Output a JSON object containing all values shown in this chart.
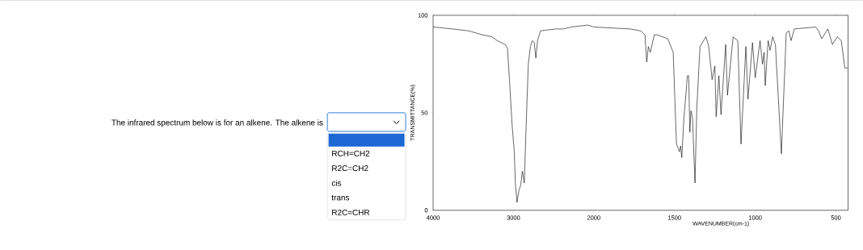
{
  "chart_data": [
    {
      "type": "line",
      "ylabel": "TRANSMITTANCE(%)",
      "color": "#000000",
      "x": [
        4000,
        3758,
        3556,
        3387,
        3269,
        3202,
        3101,
        3074,
        3051,
        3017,
        2990,
        2976,
        2956,
        2933,
        2909,
        2889,
        2865,
        2848,
        2815,
        2788,
        2764,
        2741,
        2721,
        2700,
        2663,
        2478,
        2377,
        2276,
        2074,
        2000
      ],
      "values": [
        94,
        93,
        92,
        90,
        89,
        87,
        85,
        83,
        68,
        44,
        30,
        14,
        4,
        10,
        13,
        20,
        14,
        36,
        75,
        84,
        87,
        86,
        78,
        87,
        92,
        93,
        93,
        94,
        95,
        94
      ],
      "xlim": [
        4000,
        2000
      ],
      "ylim": [
        0,
        100
      ],
      "xticks": [
        4000,
        3000,
        2000
      ],
      "yticks": [
        0,
        50,
        100
      ],
      "annotations": [
        "The infrared spectrum below is for an alkene.  The alkene is",
        "RCH=CH2",
        "R2C=CH2",
        "cis",
        "trans",
        "R2C=CHR"
      ]
    },
    {
      "type": "line",
      "xlabel": "WAVENUMBER(cm-1)",
      "color": "#000000",
      "x": [
        2000,
        1775,
        1708,
        1683,
        1672,
        1662,
        1650,
        1625,
        1608,
        1542,
        1508,
        1488,
        1478,
        1470,
        1462,
        1455,
        1442,
        1420,
        1412,
        1405,
        1398,
        1388,
        1382,
        1373,
        1362,
        1342,
        1305,
        1288,
        1267,
        1250,
        1242,
        1225,
        1212,
        1183,
        1172,
        1137,
        1108,
        1088,
        1058,
        1045,
        1017,
        1000,
        970,
        955,
        945,
        938,
        920,
        908,
        892,
        875,
        838,
        808,
        792,
        778,
        758,
        625,
        608,
        588,
        550,
        522,
        492,
        467,
        445,
        428
      ],
      "values": [
        94,
        93,
        92,
        90,
        76,
        84,
        81,
        90,
        90,
        88,
        81,
        34,
        32,
        30,
        33,
        27,
        47,
        69,
        69,
        40,
        51,
        47,
        33,
        14,
        52,
        84,
        89,
        84,
        67,
        74,
        48,
        69,
        49,
        85,
        59,
        89,
        87,
        34,
        84,
        57,
        86,
        68,
        87,
        75,
        81,
        64,
        87,
        82,
        89,
        85,
        29,
        91,
        92,
        87,
        93,
        94,
        92,
        88,
        93,
        85,
        89,
        87,
        73,
        73
      ],
      "xlim": [
        2000,
        425
      ],
      "ylim": [
        0,
        100
      ],
      "xticks": [
        1500,
        1000,
        500
      ],
      "yticks": [
        0,
        50,
        100
      ],
      "tick_labels": "x"
    }
  ]
}
